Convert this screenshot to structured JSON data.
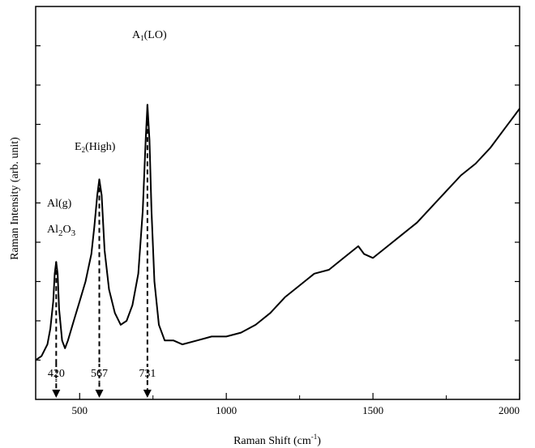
{
  "chart_data": {
    "type": "line",
    "title": "",
    "xlabel": "Raman Shift (cm",
    "xlabel_sup": "-1",
    "xlabel_end": ")",
    "ylabel": "Raman Intensity (arb. unit)",
    "xlim": [
      350,
      2000
    ],
    "ylim": [
      0,
      10
    ],
    "x_ticks": [
      500,
      1000,
      1500,
      2000
    ],
    "x_tick_labels": [
      "500",
      "1000",
      "1500",
      "2000"
    ],
    "y_tick_labels_shown": false,
    "grid": false,
    "series": [
      {
        "x": [
          350,
          370,
          390,
          400,
          410,
          415,
          420,
          425,
          430,
          440,
          450,
          460,
          480,
          500,
          520,
          540,
          550,
          560,
          567,
          575,
          585,
          600,
          620,
          640,
          660,
          680,
          700,
          715,
          725,
          731,
          738,
          745,
          755,
          770,
          790,
          820,
          850,
          900,
          950,
          1000,
          1050,
          1100,
          1150,
          1200,
          1250,
          1300,
          1350,
          1400,
          1450,
          1470,
          1500,
          1550,
          1600,
          1650,
          1700,
          1750,
          1800,
          1850,
          1900,
          1950,
          1980,
          2000
        ],
        "y": [
          1.0,
          1.1,
          1.4,
          1.8,
          2.5,
          3.2,
          3.5,
          3.2,
          2.3,
          1.5,
          1.3,
          1.5,
          2.0,
          2.5,
          3.0,
          3.7,
          4.4,
          5.2,
          5.6,
          5.2,
          3.8,
          2.8,
          2.2,
          1.9,
          2.0,
          2.4,
          3.2,
          4.8,
          6.6,
          7.5,
          6.6,
          4.8,
          3.0,
          1.9,
          1.5,
          1.5,
          1.4,
          1.5,
          1.6,
          1.6,
          1.7,
          1.9,
          2.2,
          2.6,
          2.9,
          3.2,
          3.3,
          3.6,
          3.9,
          3.7,
          3.6,
          3.9,
          4.2,
          4.5,
          4.9,
          5.3,
          5.7,
          6.0,
          6.4,
          6.9,
          7.2,
          7.4
        ]
      }
    ],
    "peaks": [
      {
        "x": 420,
        "label": "420"
      },
      {
        "x": 567,
        "label": "567"
      },
      {
        "x": 731,
        "label": "731"
      }
    ],
    "annotations": {
      "al_g": "Al(g)",
      "al2o3_a": "Al",
      "al2o3_sub1": "2",
      "al2o3_b": "O",
      "al2o3_sub2": "3",
      "e2_a": "E",
      "e2_sub": "2",
      "e2_b": "(High)",
      "a1_a": "A",
      "a1_sub": "1",
      "a1_b": "(LO)"
    }
  }
}
